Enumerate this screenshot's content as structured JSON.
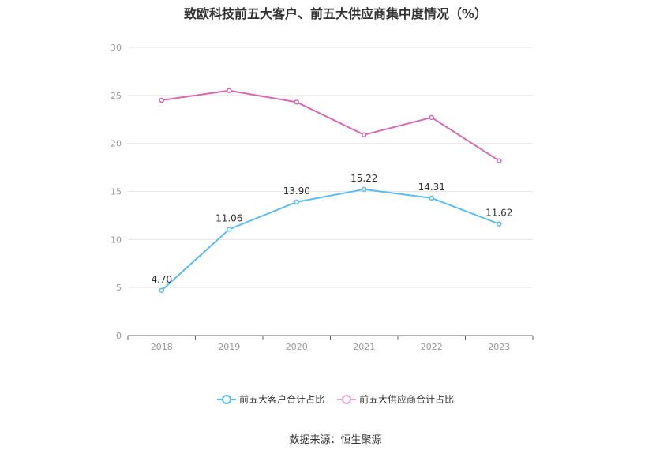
{
  "chart_data": {
    "type": "line",
    "title": "致欧科技前五大客户、前五大供应商集中度情况（%）",
    "categories": [
      "2018",
      "2019",
      "2020",
      "2021",
      "2022",
      "2023"
    ],
    "ylim": [
      0,
      30
    ],
    "yticks": [
      0,
      5,
      10,
      15,
      20,
      25,
      30
    ],
    "grid": true,
    "legend_position": "bottom",
    "series": [
      {
        "name": "前五大客户合计占比",
        "values": [
          4.7,
          11.06,
          13.9,
          15.22,
          14.31,
          11.62
        ],
        "labels": [
          "4.70",
          "11.06",
          "13.90",
          "15.22",
          "14.31",
          "11.62"
        ],
        "show_labels": true,
        "color": "#5bbcf0"
      },
      {
        "name": "前五大供应商合计占比",
        "values": [
          24.5,
          25.5,
          24.3,
          20.9,
          22.7,
          18.2
        ],
        "show_labels": false,
        "color": "#d668b0"
      }
    ],
    "source": "数据来源：恒生聚源"
  }
}
